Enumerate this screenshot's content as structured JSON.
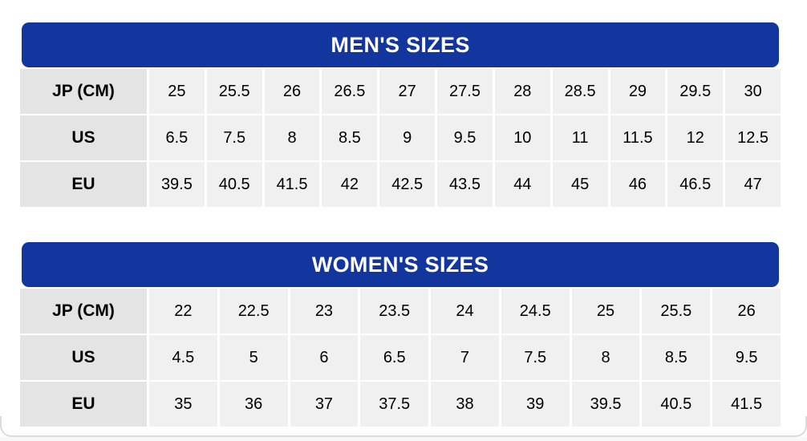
{
  "colors": {
    "header_blue": "#12359E",
    "header_text": "#ffffff",
    "row_label_bg": "#e4e4e4",
    "cell_bg": "#f0f0f0",
    "cell_text": "#000000",
    "card_border": "#dcdcdc"
  },
  "chart_data": [
    {
      "type": "table",
      "title": "MEN'S SIZES",
      "rows": [
        {
          "label": "JP (CM)",
          "values": [
            "25",
            "25.5",
            "26",
            "26.5",
            "27",
            "27.5",
            "28",
            "28.5",
            "29",
            "29.5",
            "30"
          ]
        },
        {
          "label": "US",
          "values": [
            "6.5",
            "7.5",
            "8",
            "8.5",
            "9",
            "9.5",
            "10",
            "11",
            "11.5",
            "12",
            "12.5"
          ]
        },
        {
          "label": "EU",
          "values": [
            "39.5",
            "40.5",
            "41.5",
            "42",
            "42.5",
            "43.5",
            "44",
            "45",
            "46",
            "46.5",
            "47"
          ]
        }
      ]
    },
    {
      "type": "table",
      "title": "WOMEN'S SIZES",
      "rows": [
        {
          "label": "JP (CM)",
          "values": [
            "22",
            "22.5",
            "23",
            "23.5",
            "24",
            "24.5",
            "25",
            "25.5",
            "26"
          ]
        },
        {
          "label": "US",
          "values": [
            "4.5",
            "5",
            "6",
            "6.5",
            "7",
            "7.5",
            "8",
            "8.5",
            "9.5"
          ]
        },
        {
          "label": "EU",
          "values": [
            "35",
            "36",
            "37",
            "37.5",
            "38",
            "39",
            "39.5",
            "40.5",
            "41.5"
          ]
        }
      ]
    }
  ]
}
